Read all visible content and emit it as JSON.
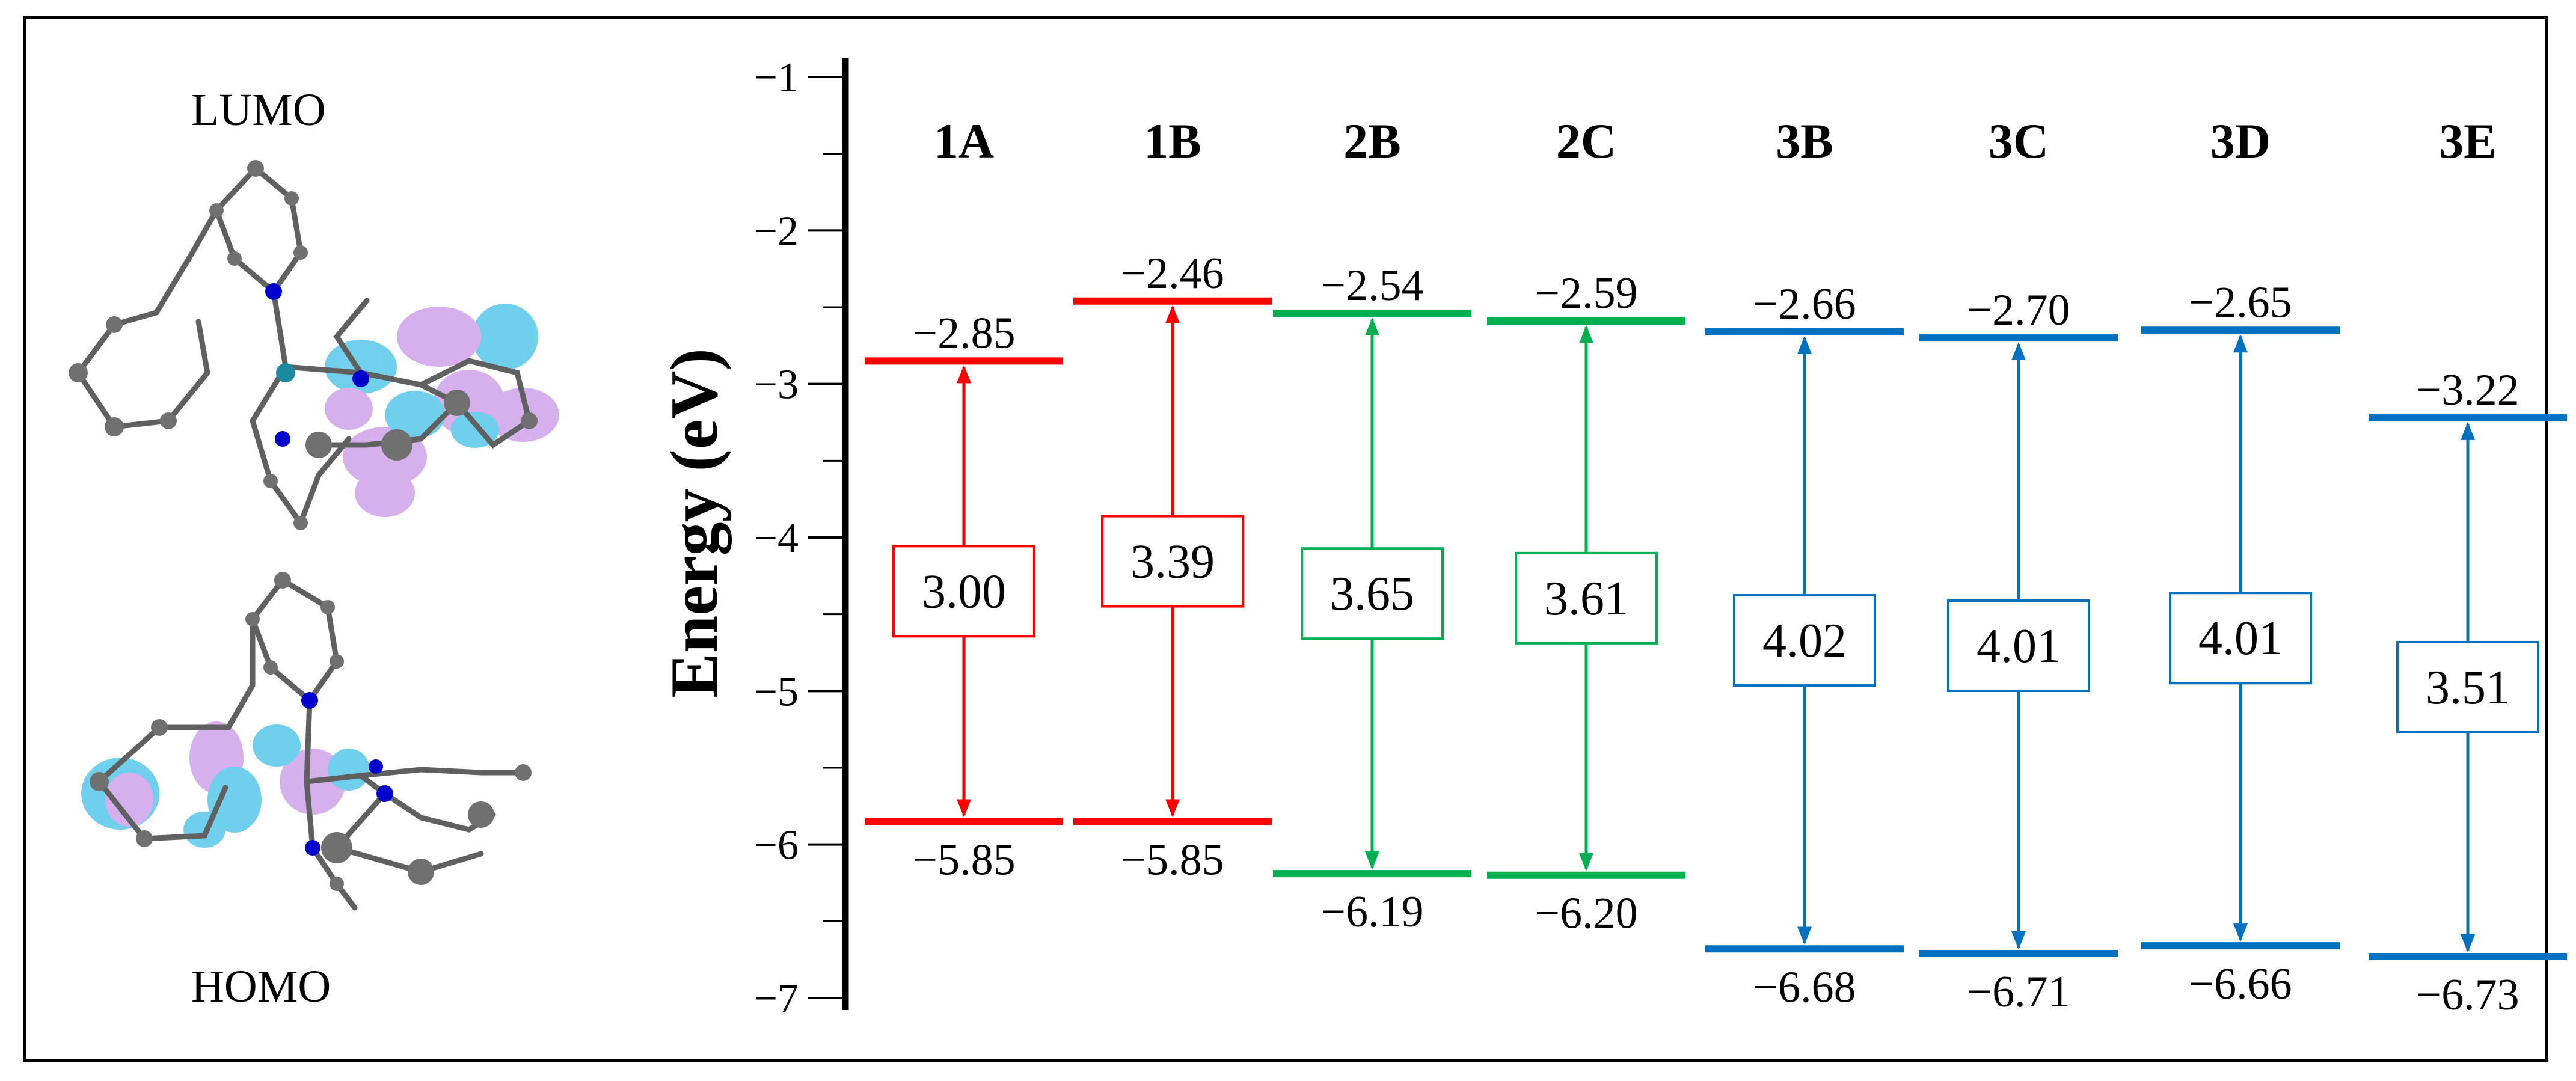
{
  "molecule_panel": {
    "lumo_label": "LUMO",
    "homo_label": "HOMO"
  },
  "chart_data": {
    "type": "energy-level-diagram",
    "title": "",
    "xlabel": "",
    "ylabel": "Energy (eV)",
    "ylim": [
      -7,
      -1
    ],
    "yticks": [
      -1,
      -2,
      -3,
      -4,
      -5,
      -6,
      -7
    ],
    "ytick_labels": [
      "−1",
      "−2",
      "−3",
      "−4",
      "−5",
      "−6",
      "−7"
    ],
    "categories": [
      "1A",
      "1B",
      "2B",
      "2C",
      "3B",
      "3C",
      "3D",
      "3E"
    ],
    "lumo": [
      -2.85,
      -2.46,
      -2.54,
      -2.59,
      -2.66,
      -2.7,
      -2.65,
      -3.22
    ],
    "homo": [
      -5.85,
      -5.85,
      -6.19,
      -6.2,
      -6.68,
      -6.71,
      -6.66,
      -6.73
    ],
    "lumo_labels": [
      "−2.85",
      "−2.46",
      "−2.54",
      "−2.59",
      "−2.66",
      "−2.70",
      "−2.65",
      "−3.22"
    ],
    "homo_labels": [
      "−5.85",
      "−5.85",
      "−6.19",
      "−6.20",
      "−6.68",
      "−6.71",
      "−6.66",
      "−6.73"
    ],
    "gap_labels": [
      "3.00",
      "3.39",
      "3.65",
      "3.61",
      "4.02",
      "4.01",
      "4.01",
      "3.51"
    ],
    "colors": [
      "#ff0000",
      "#ff0000",
      "#00b050",
      "#00b050",
      "#0070c0",
      "#0070c0",
      "#0070c0",
      "#0070c0"
    ]
  }
}
